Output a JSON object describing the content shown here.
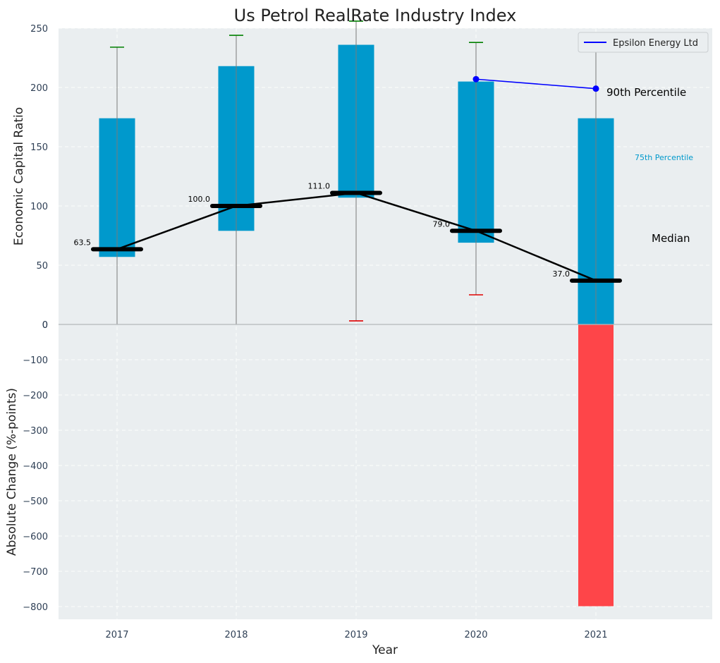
{
  "chart_data": {
    "type": "bar",
    "title": "Us Petrol RealRate Industry Index",
    "xlabel": "Year",
    "ylabel_top": "Economic Capital Ratio",
    "ylabel_bottom": "Absolute Change (%-points)",
    "categories": [
      "2017",
      "2018",
      "2019",
      "2020",
      "2021"
    ],
    "top_ylim": [
      0,
      250
    ],
    "top_yticks": [
      "250",
      "200",
      "150",
      "100",
      "50",
      "0"
    ],
    "bottom_ylim": [
      -840,
      0
    ],
    "bottom_yticks": [
      "0",
      "−100",
      "−200",
      "−300",
      "−400",
      "−500",
      "−600",
      "−700",
      "−800"
    ],
    "grid": true,
    "legend": {
      "location": "top-right",
      "entries": [
        {
          "label": "Epsilon Energy Ltd",
          "color": "#0000ff"
        }
      ]
    },
    "box_ranges": [
      {
        "year": "2017",
        "low": 57,
        "high": 174
      },
      {
        "year": "2018",
        "low": 79,
        "high": 218
      },
      {
        "year": "2019",
        "low": 107,
        "high": 236
      },
      {
        "year": "2020",
        "low": 69,
        "high": 205
      },
      {
        "year": "2021",
        "low": 0,
        "high": 174
      }
    ],
    "whisker_top": [
      234,
      244,
      256,
      238,
      230
    ],
    "whisker_bottom": [
      0,
      0,
      3,
      25,
      null
    ],
    "median": {
      "values": [
        63.5,
        100.0,
        111.0,
        79.0,
        37.0
      ],
      "labels": [
        "63.5",
        "100.0",
        "111.0",
        "79.0",
        "37.0"
      ]
    },
    "company_series": {
      "name": "Epsilon Energy Ltd",
      "x": [
        "2020",
        "2021"
      ],
      "values": [
        207,
        199
      ]
    },
    "absolute_change": [
      {
        "year": "2021",
        "value": -799
      }
    ],
    "annotations": {
      "p90": "90th Percentile",
      "p75": "75th Percentile",
      "median": "Median"
    },
    "colors": {
      "box": "#0099cc",
      "median": "#000000",
      "company": "#0000ff",
      "change_bar": "#ff3b3f",
      "whisker_top_cap": "#008000",
      "whisker_bottom_cap": "#e00000",
      "background": "#eaeef0"
    }
  }
}
